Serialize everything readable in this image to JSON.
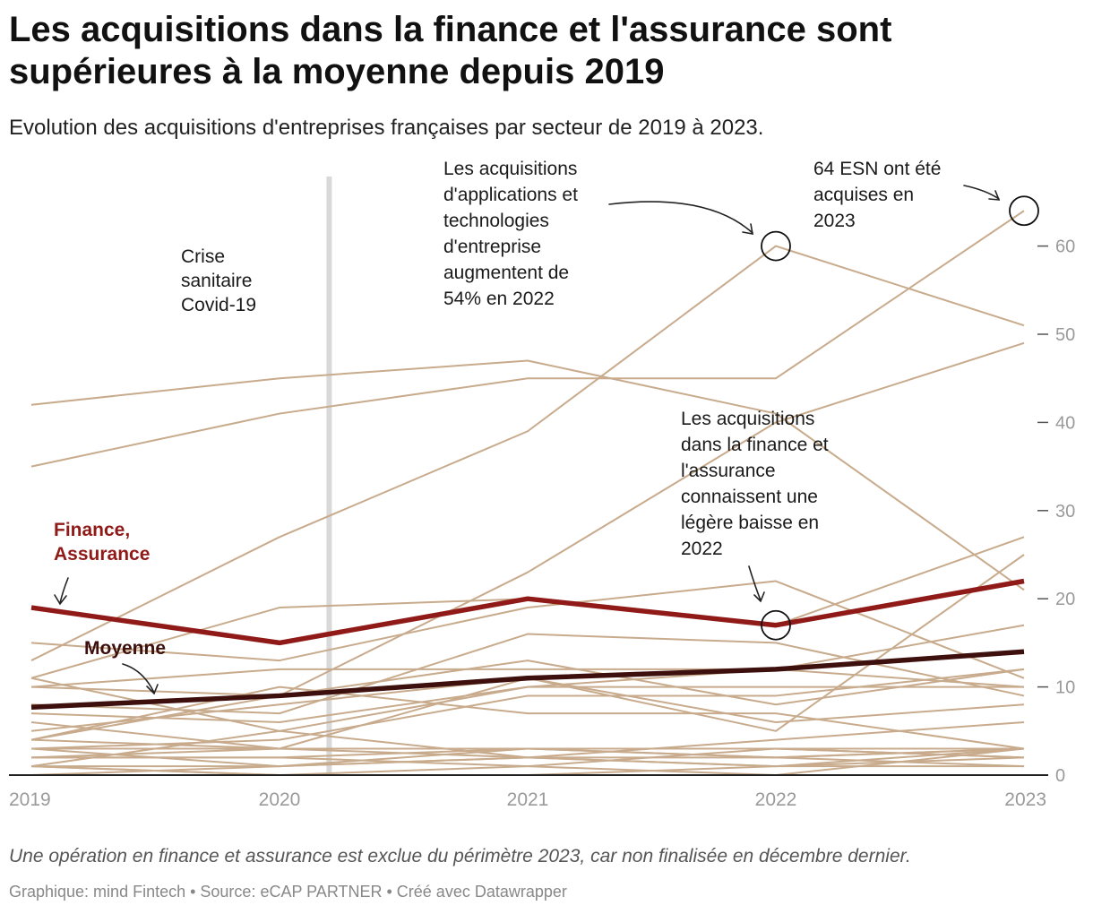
{
  "title": "Les acquisitions dans la finance et l'assurance sont supérieures à la moyenne depuis 2019",
  "subtitle": "Evolution des acquisitions d'entreprises françaises par secteur de 2019 à 2023.",
  "notes": "Une opération en finance et assurance est exclue du périmètre 2023, car non finalisée en décembre dernier.",
  "byline": {
    "source_line": "Graphique: mind Fintech • Source: eCAP PARTNER • Créé avec Datawrapper"
  },
  "colors": {
    "sector_lines": "#c8ab8c",
    "finance": "#8f1a18",
    "average": "#3d0f0d",
    "covid_marker": "#d9d9d9",
    "axis_ticks": "#9a9a9a"
  },
  "chart_data": {
    "type": "line",
    "x": [
      "2019",
      "2020",
      "2021",
      "2022",
      "2023"
    ],
    "ylim": [
      0,
      68
    ],
    "yticks": [
      0,
      10,
      20,
      30,
      40,
      50,
      60
    ],
    "y_axis_side": "right",
    "highlight_series": [
      {
        "name": "Finance, Assurance",
        "values": [
          19,
          15,
          20,
          17,
          22
        ]
      },
      {
        "name": "Moyenne",
        "values": [
          7.7,
          9,
          11,
          12,
          14
        ]
      }
    ],
    "background_series": [
      [
        42,
        45,
        47,
        41,
        21
      ],
      [
        35,
        41,
        45,
        45,
        64
      ],
      [
        13,
        27,
        39,
        60,
        51
      ],
      [
        4,
        9,
        23,
        40,
        49
      ],
      [
        15,
        13,
        19,
        22,
        11
      ],
      [
        11,
        19,
        20,
        17,
        27
      ],
      [
        10,
        12,
        12,
        12,
        10
      ],
      [
        8,
        7,
        16,
        15,
        9
      ],
      [
        10,
        9,
        13,
        8,
        12
      ],
      [
        7,
        6,
        10,
        12,
        17
      ],
      [
        5,
        8,
        11,
        5,
        25
      ],
      [
        11,
        5,
        10,
        10,
        10
      ],
      [
        3,
        4,
        9,
        9,
        12
      ],
      [
        4,
        10,
        7,
        7,
        3
      ],
      [
        6,
        3,
        11,
        6,
        8
      ],
      [
        3,
        3,
        3,
        2,
        3
      ],
      [
        2,
        2,
        3,
        3,
        2
      ],
      [
        1,
        5,
        2,
        4,
        6
      ],
      [
        3,
        1,
        2,
        1,
        3
      ],
      [
        2,
        2,
        1,
        0,
        3
      ],
      [
        1,
        1,
        3,
        3,
        3
      ],
      [
        0,
        1,
        2,
        2,
        1
      ],
      [
        1,
        0,
        0,
        1,
        2
      ],
      [
        2,
        3,
        2,
        1,
        1
      ],
      [
        4,
        3,
        3,
        2,
        3
      ],
      [
        1,
        0,
        1,
        3,
        2
      ]
    ],
    "covid_marker_at": 0.2,
    "annotations": [
      {
        "text": "Crise sanitaire Covid-19",
        "lines": [
          "Crise",
          "sanitaire",
          "Covid-19"
        ]
      },
      {
        "text": "Les acquisitions d'applications et technologies d'entreprise augmentent de 54% en 2022",
        "lines": [
          "Les acquisitions",
          "d'applications et",
          "technologies",
          "d'entreprise",
          "augmentent de",
          "54% en 2022"
        ],
        "target": {
          "x": "2022",
          "y": 60
        }
      },
      {
        "text": "64 ESN ont été acquises en 2023",
        "lines": [
          "64 ESN ont été",
          "acquises en",
          "2023"
        ],
        "target": {
          "x": "2023",
          "y": 64
        }
      },
      {
        "text": "Les acquisitions dans la finance et l'assurance connaissent une légère baisse en 2022",
        "lines": [
          "Les acquisitions",
          "dans la finance et",
          "l'assurance",
          "connaissent une",
          "légère baisse en",
          "2022"
        ],
        "target": {
          "x": "2022",
          "y": 17
        }
      }
    ],
    "labels": [
      {
        "text": "Finance, Assurance",
        "lines": [
          "Finance,",
          "Assurance"
        ]
      },
      {
        "text": "Moyenne",
        "lines": [
          "Moyenne"
        ]
      }
    ]
  }
}
